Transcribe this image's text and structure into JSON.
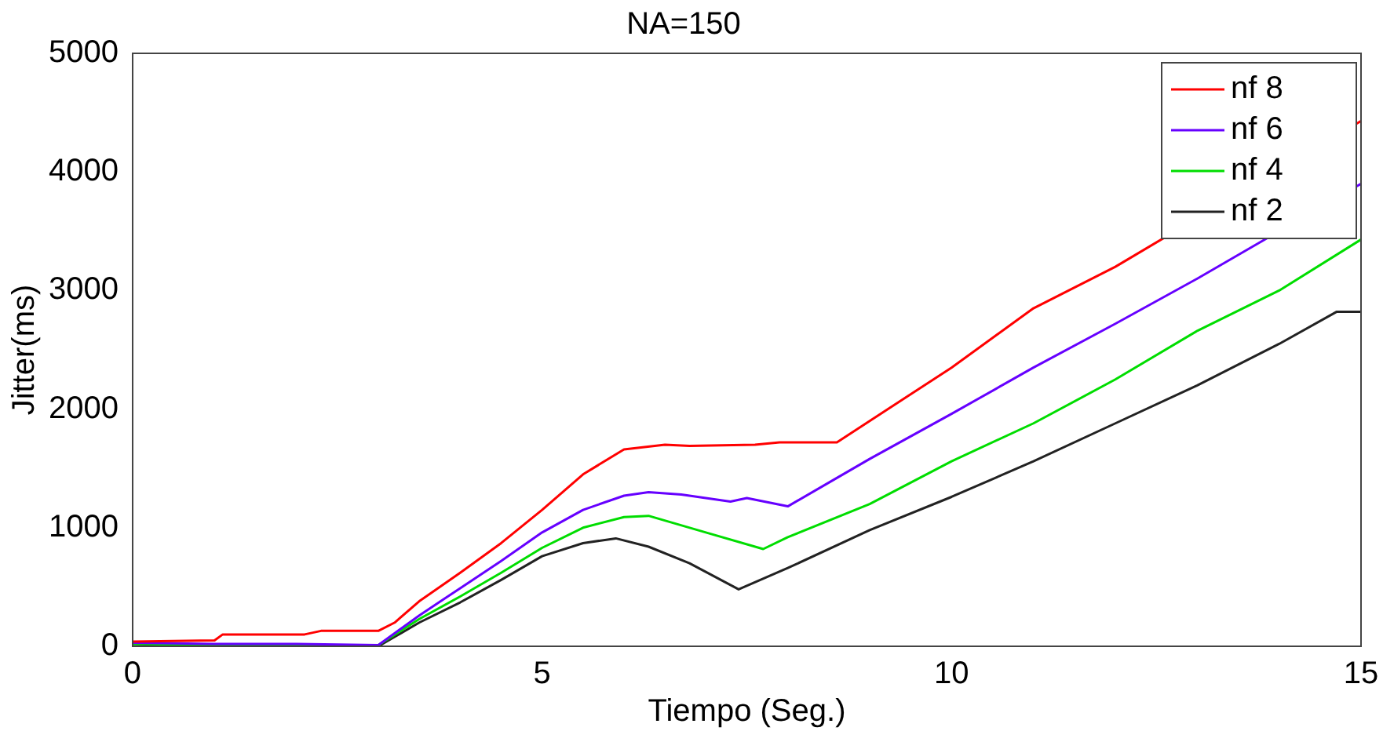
{
  "chart_data": {
    "type": "line",
    "title": "NA=150",
    "xlabel": "Tiempo (Seg.)",
    "ylabel": "Jitter(ms)",
    "xlim": [
      0,
      15
    ],
    "xticks": [
      0,
      5,
      10,
      15
    ],
    "ylim": [
      0,
      5000
    ],
    "yticks": [
      0,
      1000,
      2000,
      3000,
      4000,
      5000
    ],
    "grid": false,
    "legend": "top right",
    "marker": "none",
    "line_style": "solid",
    "series": [
      {
        "name": "nf 8",
        "color": "#ff0000",
        "x": [
          0,
          1,
          1.1,
          2.1,
          2.3,
          3,
          3.2,
          3.5,
          4,
          4.5,
          5,
          5.5,
          6,
          6.5,
          6.8,
          7.6,
          7.9,
          8.6,
          9,
          10,
          11,
          12,
          13,
          14,
          15
        ],
        "values": [
          40,
          50,
          100,
          100,
          130,
          130,
          200,
          380,
          620,
          870,
          1150,
          1450,
          1660,
          1700,
          1690,
          1700,
          1720,
          1720,
          1900,
          2350,
          2850,
          3200,
          null,
          null,
          4430
        ]
      },
      {
        "name": "nf 6",
        "color": "#6600ff",
        "x": [
          0,
          1,
          2,
          3,
          3.5,
          4,
          4.5,
          5,
          5.5,
          6,
          6.3,
          6.7,
          7.3,
          7.5,
          8,
          8.5,
          9,
          10,
          11,
          12,
          13,
          14,
          15
        ],
        "values": [
          30,
          20,
          20,
          10,
          260,
          490,
          720,
          960,
          1150,
          1270,
          1300,
          1280,
          1220,
          1250,
          1180,
          1380,
          1580,
          1960,
          2350,
          2720,
          3100,
          null,
          3900
        ]
      },
      {
        "name": "nf 4",
        "color": "#00dd00",
        "x": [
          0,
          1,
          2,
          3,
          3.5,
          4,
          4.5,
          5,
          5.5,
          6,
          6.3,
          7,
          7.7,
          8,
          9,
          10,
          11,
          12,
          13,
          14,
          15
        ],
        "values": [
          20,
          10,
          10,
          10,
          230,
          420,
          620,
          830,
          1000,
          1090,
          1100,
          960,
          820,
          920,
          1200,
          1560,
          1880,
          2250,
          2660,
          3000,
          3430
        ]
      },
      {
        "name": "nf 2",
        "color": "#222222",
        "x": [
          0,
          1,
          2,
          3,
          3.5,
          4,
          4.5,
          5,
          5.5,
          5.9,
          6.3,
          6.8,
          7.4,
          8,
          9,
          10,
          11,
          12,
          13,
          14,
          14.7,
          15
        ],
        "values": [
          20,
          0,
          0,
          0,
          200,
          370,
          560,
          760,
          870,
          910,
          840,
          700,
          480,
          660,
          980,
          1260,
          1560,
          1880,
          2200,
          2550,
          2820,
          2820
        ]
      }
    ]
  }
}
